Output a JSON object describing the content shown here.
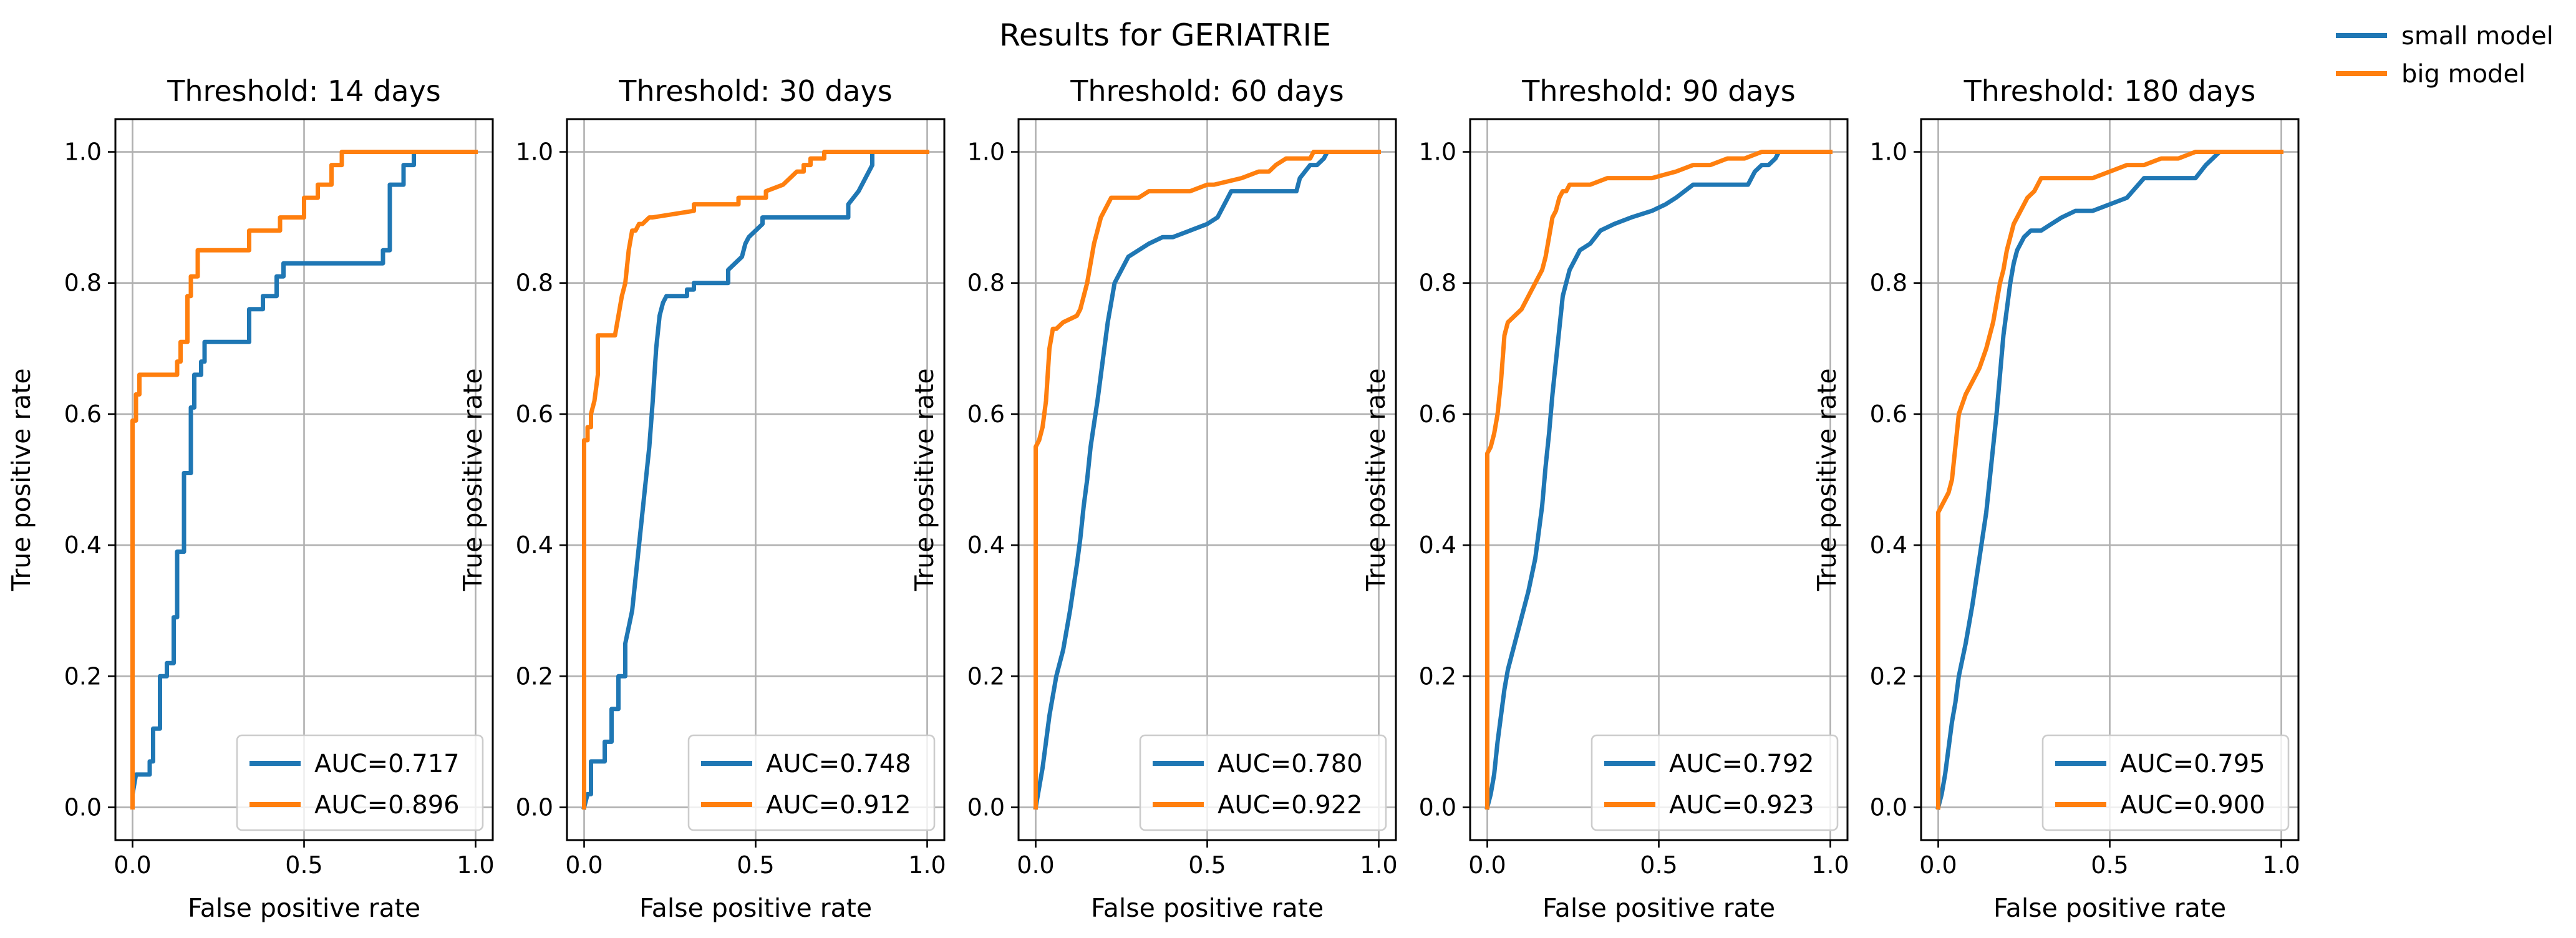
{
  "figure": {
    "suptitle": "Results for GERIATRIE",
    "legend": [
      {
        "name": "small model",
        "color": "#1f77b4"
      },
      {
        "name": "big model",
        "color": "#ff7f0e"
      }
    ]
  },
  "chart_data": [
    {
      "type": "line",
      "title": "Threshold: 14 days",
      "xlabel": "False positive rate",
      "ylabel": "True positive rate",
      "xlim": [
        -0.05,
        1.05
      ],
      "ylim": [
        -0.05,
        1.05
      ],
      "xticks": [
        "0.0",
        "0.5",
        "1.0"
      ],
      "yticks": [
        "0.0",
        "0.2",
        "0.4",
        "0.6",
        "0.8",
        "1.0"
      ],
      "grid": true,
      "legend_loc": "lower right",
      "series": [
        {
          "name": "AUC=0.717",
          "color": "#1f77b4",
          "x": [
            0,
            0,
            0.01,
            0.05,
            0.05,
            0.06,
            0.06,
            0.08,
            0.08,
            0.1,
            0.1,
            0.12,
            0.12,
            0.13,
            0.13,
            0.15,
            0.15,
            0.17,
            0.17,
            0.18,
            0.18,
            0.2,
            0.2,
            0.21,
            0.21,
            0.23,
            0.23,
            0.34,
            0.34,
            0.38,
            0.38,
            0.42,
            0.42,
            0.44,
            0.44,
            0.73,
            0.73,
            0.75,
            0.75,
            0.79,
            0.79,
            0.8,
            0.8,
            0.82,
            0.82,
            1.0
          ],
          "y": [
            0,
            0.02,
            0.05,
            0.05,
            0.07,
            0.07,
            0.12,
            0.12,
            0.2,
            0.2,
            0.22,
            0.22,
            0.29,
            0.29,
            0.39,
            0.39,
            0.51,
            0.51,
            0.61,
            0.61,
            0.66,
            0.66,
            0.68,
            0.68,
            0.71,
            0.71,
            0.71,
            0.71,
            0.76,
            0.76,
            0.78,
            0.78,
            0.81,
            0.81,
            0.83,
            0.83,
            0.85,
            0.85,
            0.95,
            0.95,
            0.98,
            0.98,
            0.98,
            0.98,
            1.0,
            1.0
          ]
        },
        {
          "name": "AUC=0.896",
          "color": "#ff7f0e",
          "x": [
            0,
            0,
            0.01,
            0.01,
            0.02,
            0.02,
            0.13,
            0.13,
            0.14,
            0.14,
            0.16,
            0.16,
            0.17,
            0.17,
            0.19,
            0.19,
            0.34,
            0.34,
            0.43,
            0.43,
            0.5,
            0.5,
            0.54,
            0.54,
            0.58,
            0.58,
            0.61,
            0.61,
            1.0
          ],
          "y": [
            0,
            0.59,
            0.59,
            0.63,
            0.63,
            0.66,
            0.66,
            0.68,
            0.68,
            0.71,
            0.71,
            0.78,
            0.78,
            0.81,
            0.81,
            0.85,
            0.85,
            0.88,
            0.88,
            0.9,
            0.9,
            0.93,
            0.93,
            0.95,
            0.95,
            0.98,
            0.98,
            1.0,
            1.0
          ]
        }
      ]
    },
    {
      "type": "line",
      "title": "Threshold: 30 days",
      "xlabel": "False positive rate",
      "ylabel": "True positive rate",
      "xlim": [
        -0.05,
        1.05
      ],
      "ylim": [
        -0.05,
        1.05
      ],
      "xticks": [
        "0.0",
        "0.5",
        "1.0"
      ],
      "yticks": [
        "0.0",
        "0.2",
        "0.4",
        "0.6",
        "0.8",
        "1.0"
      ],
      "grid": true,
      "legend_loc": "lower right",
      "series": [
        {
          "name": "AUC=0.748",
          "color": "#1f77b4",
          "x": [
            0,
            0.01,
            0.02,
            0.02,
            0.06,
            0.06,
            0.08,
            0.08,
            0.1,
            0.1,
            0.12,
            0.12,
            0.14,
            0.16,
            0.18,
            0.19,
            0.2,
            0.21,
            0.22,
            0.23,
            0.24,
            0.25,
            0.25,
            0.3,
            0.3,
            0.32,
            0.32,
            0.42,
            0.42,
            0.46,
            0.47,
            0.48,
            0.5,
            0.52,
            0.52,
            0.77,
            0.77,
            0.8,
            0.82,
            0.84,
            0.84,
            1.0
          ],
          "y": [
            0,
            0.02,
            0.02,
            0.07,
            0.07,
            0.1,
            0.1,
            0.15,
            0.15,
            0.2,
            0.2,
            0.25,
            0.3,
            0.4,
            0.5,
            0.55,
            0.62,
            0.7,
            0.75,
            0.77,
            0.78,
            0.78,
            0.78,
            0.78,
            0.79,
            0.79,
            0.8,
            0.8,
            0.82,
            0.84,
            0.86,
            0.87,
            0.88,
            0.89,
            0.9,
            0.9,
            0.92,
            0.94,
            0.96,
            0.98,
            1.0,
            1.0
          ]
        },
        {
          "name": "AUC=0.912",
          "color": "#ff7f0e",
          "x": [
            0,
            0,
            0.01,
            0.01,
            0.02,
            0.02,
            0.03,
            0.04,
            0.04,
            0.09,
            0.1,
            0.11,
            0.12,
            0.13,
            0.14,
            0.15,
            0.16,
            0.17,
            0.19,
            0.2,
            0.32,
            0.32,
            0.45,
            0.45,
            0.53,
            0.53,
            0.58,
            0.6,
            0.62,
            0.64,
            0.64,
            0.66,
            0.66,
            0.7,
            0.7,
            0.74,
            0.74,
            1.0
          ],
          "y": [
            0,
            0.56,
            0.56,
            0.58,
            0.58,
            0.6,
            0.62,
            0.66,
            0.72,
            0.72,
            0.75,
            0.78,
            0.8,
            0.85,
            0.88,
            0.88,
            0.89,
            0.89,
            0.9,
            0.9,
            0.91,
            0.92,
            0.92,
            0.93,
            0.93,
            0.94,
            0.95,
            0.96,
            0.97,
            0.97,
            0.98,
            0.98,
            0.99,
            0.99,
            1.0,
            1.0,
            1.0,
            1.0
          ]
        }
      ]
    },
    {
      "type": "line",
      "title": "Threshold: 60 days",
      "xlabel": "False positive rate",
      "ylabel": "True positive rate",
      "xlim": [
        -0.05,
        1.05
      ],
      "ylim": [
        -0.05,
        1.05
      ],
      "xticks": [
        "0.0",
        "0.5",
        "1.0"
      ],
      "yticks": [
        "0.0",
        "0.2",
        "0.4",
        "0.6",
        "0.8",
        "1.0"
      ],
      "grid": true,
      "legend_loc": "lower right",
      "series": [
        {
          "name": "AUC=0.780",
          "color": "#1f77b4",
          "x": [
            0,
            0.01,
            0.02,
            0.03,
            0.04,
            0.05,
            0.06,
            0.07,
            0.08,
            0.1,
            0.12,
            0.13,
            0.14,
            0.15,
            0.16,
            0.18,
            0.19,
            0.2,
            0.21,
            0.22,
            0.23,
            0.24,
            0.25,
            0.27,
            0.3,
            0.33,
            0.37,
            0.4,
            0.45,
            0.5,
            0.53,
            0.55,
            0.57,
            0.6,
            0.76,
            0.77,
            0.8,
            0.82,
            0.84,
            0.85,
            1.0
          ],
          "y": [
            0,
            0.03,
            0.06,
            0.1,
            0.14,
            0.17,
            0.2,
            0.22,
            0.24,
            0.3,
            0.37,
            0.41,
            0.46,
            0.5,
            0.55,
            0.62,
            0.66,
            0.7,
            0.74,
            0.77,
            0.8,
            0.81,
            0.82,
            0.84,
            0.85,
            0.86,
            0.87,
            0.87,
            0.88,
            0.89,
            0.9,
            0.92,
            0.94,
            0.94,
            0.94,
            0.96,
            0.98,
            0.98,
            0.99,
            1.0,
            1.0
          ]
        },
        {
          "name": "AUC=0.922",
          "color": "#ff7f0e",
          "x": [
            0,
            0,
            0.01,
            0.02,
            0.03,
            0.04,
            0.05,
            0.06,
            0.08,
            0.12,
            0.13,
            0.14,
            0.15,
            0.16,
            0.17,
            0.18,
            0.19,
            0.2,
            0.21,
            0.22,
            0.23,
            0.3,
            0.33,
            0.45,
            0.5,
            0.52,
            0.6,
            0.65,
            0.68,
            0.7,
            0.73,
            0.8,
            0.81,
            1.0
          ],
          "y": [
            0,
            0.55,
            0.56,
            0.58,
            0.62,
            0.7,
            0.73,
            0.73,
            0.74,
            0.75,
            0.76,
            0.78,
            0.8,
            0.83,
            0.86,
            0.88,
            0.9,
            0.91,
            0.92,
            0.93,
            0.93,
            0.93,
            0.94,
            0.94,
            0.95,
            0.95,
            0.96,
            0.97,
            0.97,
            0.98,
            0.99,
            0.99,
            1.0,
            1.0
          ]
        }
      ]
    },
    {
      "type": "line",
      "title": "Threshold: 90 days",
      "xlabel": "False positive rate",
      "ylabel": "True positive rate",
      "xlim": [
        -0.05,
        1.05
      ],
      "ylim": [
        -0.05,
        1.05
      ],
      "xticks": [
        "0.0",
        "0.5",
        "1.0"
      ],
      "yticks": [
        "0.0",
        "0.2",
        "0.4",
        "0.6",
        "0.8",
        "1.0"
      ],
      "grid": true,
      "legend_loc": "lower right",
      "series": [
        {
          "name": "AUC=0.792",
          "color": "#1f77b4",
          "x": [
            0,
            0.01,
            0.02,
            0.03,
            0.04,
            0.05,
            0.06,
            0.08,
            0.1,
            0.12,
            0.14,
            0.15,
            0.16,
            0.17,
            0.18,
            0.19,
            0.2,
            0.21,
            0.22,
            0.23,
            0.24,
            0.25,
            0.27,
            0.3,
            0.33,
            0.37,
            0.42,
            0.48,
            0.52,
            0.55,
            0.6,
            0.7,
            0.76,
            0.78,
            0.8,
            0.82,
            0.84,
            0.85,
            1.0
          ],
          "y": [
            0,
            0.02,
            0.05,
            0.1,
            0.14,
            0.18,
            0.21,
            0.25,
            0.29,
            0.33,
            0.38,
            0.42,
            0.46,
            0.52,
            0.57,
            0.63,
            0.68,
            0.73,
            0.78,
            0.8,
            0.82,
            0.83,
            0.85,
            0.86,
            0.88,
            0.89,
            0.9,
            0.91,
            0.92,
            0.93,
            0.95,
            0.95,
            0.95,
            0.97,
            0.98,
            0.98,
            0.99,
            1.0,
            1.0
          ]
        },
        {
          "name": "AUC=0.923",
          "color": "#ff7f0e",
          "x": [
            0,
            0,
            0.01,
            0.02,
            0.03,
            0.04,
            0.05,
            0.06,
            0.08,
            0.1,
            0.12,
            0.14,
            0.16,
            0.17,
            0.18,
            0.19,
            0.2,
            0.21,
            0.22,
            0.23,
            0.24,
            0.3,
            0.35,
            0.48,
            0.55,
            0.6,
            0.65,
            0.7,
            0.75,
            0.8,
            0.85,
            1.0
          ],
          "y": [
            0,
            0.54,
            0.55,
            0.57,
            0.6,
            0.65,
            0.72,
            0.74,
            0.75,
            0.76,
            0.78,
            0.8,
            0.82,
            0.84,
            0.87,
            0.9,
            0.91,
            0.93,
            0.94,
            0.94,
            0.95,
            0.95,
            0.96,
            0.96,
            0.97,
            0.98,
            0.98,
            0.99,
            0.99,
            1.0,
            1.0,
            1.0
          ]
        }
      ]
    },
    {
      "type": "line",
      "title": "Threshold: 180 days",
      "xlabel": "False positive rate",
      "ylabel": "True positive rate",
      "xlim": [
        -0.05,
        1.05
      ],
      "ylim": [
        -0.05,
        1.05
      ],
      "xticks": [
        "0.0",
        "0.5",
        "1.0"
      ],
      "yticks": [
        "0.0",
        "0.2",
        "0.4",
        "0.6",
        "0.8",
        "1.0"
      ],
      "grid": true,
      "legend_loc": "lower right",
      "series": [
        {
          "name": "AUC=0.795",
          "color": "#1f77b4",
          "x": [
            0,
            0.01,
            0.02,
            0.03,
            0.04,
            0.05,
            0.06,
            0.08,
            0.1,
            0.12,
            0.14,
            0.15,
            0.16,
            0.17,
            0.18,
            0.19,
            0.2,
            0.21,
            0.22,
            0.23,
            0.24,
            0.25,
            0.27,
            0.3,
            0.33,
            0.36,
            0.4,
            0.45,
            0.5,
            0.55,
            0.6,
            0.62,
            0.68,
            0.75,
            0.78,
            0.8,
            0.82,
            1.0
          ],
          "y": [
            0,
            0.02,
            0.05,
            0.09,
            0.13,
            0.16,
            0.2,
            0.25,
            0.31,
            0.38,
            0.45,
            0.5,
            0.55,
            0.6,
            0.66,
            0.72,
            0.76,
            0.8,
            0.83,
            0.85,
            0.86,
            0.87,
            0.88,
            0.88,
            0.89,
            0.9,
            0.91,
            0.91,
            0.92,
            0.93,
            0.96,
            0.96,
            0.96,
            0.96,
            0.98,
            0.99,
            1.0,
            1.0
          ]
        },
        {
          "name": "AUC=0.900",
          "color": "#ff7f0e",
          "x": [
            0,
            0,
            0.01,
            0.02,
            0.03,
            0.04,
            0.05,
            0.06,
            0.08,
            0.1,
            0.12,
            0.14,
            0.16,
            0.17,
            0.18,
            0.19,
            0.2,
            0.21,
            0.22,
            0.24,
            0.26,
            0.28,
            0.3,
            0.32,
            0.45,
            0.5,
            0.55,
            0.6,
            0.65,
            0.7,
            0.75,
            0.8,
            0.85,
            1.0
          ],
          "y": [
            0,
            0.45,
            0.46,
            0.47,
            0.48,
            0.5,
            0.55,
            0.6,
            0.63,
            0.65,
            0.67,
            0.7,
            0.74,
            0.77,
            0.8,
            0.82,
            0.85,
            0.87,
            0.89,
            0.91,
            0.93,
            0.94,
            0.96,
            0.96,
            0.96,
            0.97,
            0.98,
            0.98,
            0.99,
            0.99,
            1.0,
            1.0,
            1.0,
            1.0
          ]
        }
      ]
    }
  ]
}
